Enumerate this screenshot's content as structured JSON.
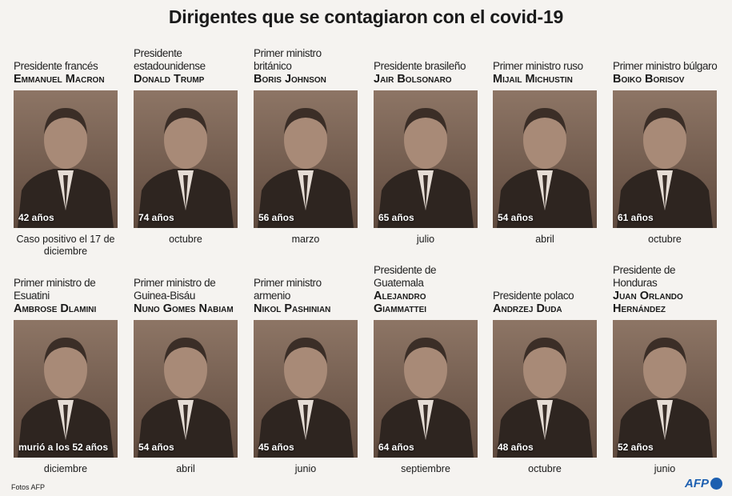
{
  "title": "Dirigentes que se contagiaron con el covid-19",
  "leaders": [
    {
      "role": "Presidente francés",
      "name": "Emmanuel Macron",
      "age": "42 años",
      "date": "Caso positivo el 17 de diciembre"
    },
    {
      "role": "Presidente estadounidense",
      "name": "Donald Trump",
      "age": "74 años",
      "date": "octubre"
    },
    {
      "role": "Primer ministro británico",
      "name": "Boris Johnson",
      "age": "56 años",
      "date": "marzo"
    },
    {
      "role": "Presidente brasileño",
      "name": "Jair Bolsonaro",
      "age": "65 años",
      "date": "julio"
    },
    {
      "role": "Primer ministro ruso",
      "name": "Mijail Michustin",
      "age": "54 años",
      "date": "abril"
    },
    {
      "role": "Primer ministro búlgaro",
      "name": "Boiko Borisov",
      "age": "61 años",
      "date": "octubre"
    },
    {
      "role": "Primer ministro de Esuatini",
      "name": "Ambrose Dlamini",
      "age": "murió a los 52 años",
      "date": "diciembre"
    },
    {
      "role": "Primer ministro de Guinea-Bisáu",
      "name": "Nuno Gomes Nabiam",
      "age": "54 años",
      "date": "abril"
    },
    {
      "role": "Primer ministro armenio",
      "name": "Nikol Pashinian",
      "age": "45 años",
      "date": "junio"
    },
    {
      "role": "Presidente de Guatemala",
      "name": "Alejandro Giammattei",
      "age": "64 años",
      "date": "septiembre"
    },
    {
      "role": "Presidente polaco",
      "name": "Andrzej Duda",
      "age": "48 años",
      "date": "octubre"
    },
    {
      "role": "Presidente de Honduras",
      "name": "Juan Orlando Hernández",
      "age": "52 años",
      "date": "junio"
    }
  ],
  "credit": "Fotos AFP",
  "logo": "AFP",
  "colors": {
    "photo_tone": "#7a6255",
    "logo": "#1d5fb0"
  }
}
